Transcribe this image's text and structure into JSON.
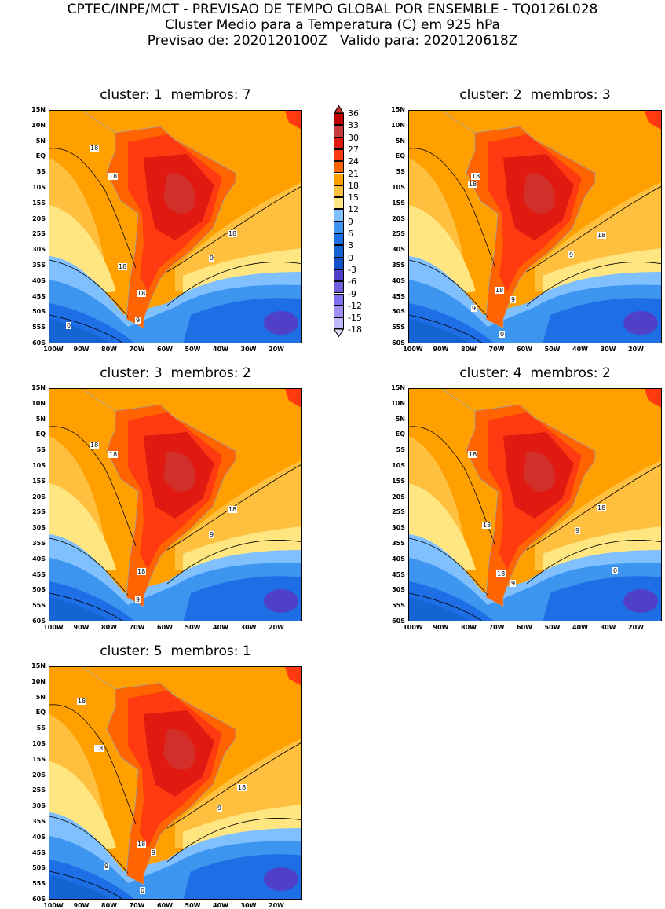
{
  "header": {
    "line1": "CPTEC/INPE/MCT - PREVISAO DE TEMPO GLOBAL POR ENSEMBLE - TQ0126L028",
    "line2": "Cluster Medio para a Temperatura (C) em 925 hPa",
    "line3": "Previsao de: 2020120100Z   Valido para: 2020120618Z"
  },
  "panels": [
    {
      "title": "cluster: 1  membros: 7",
      "contour_labels": [
        "18",
        "18",
        "18",
        "18",
        "9",
        "18",
        "9",
        "0"
      ]
    },
    {
      "title": "cluster: 2  membros: 3",
      "contour_labels": [
        "18",
        "18",
        "18",
        "9",
        "18",
        "9",
        "9",
        "0"
      ]
    },
    {
      "title": "cluster: 3  membros: 2",
      "contour_labels": [
        "18",
        "18",
        "18",
        "9",
        "18",
        "9"
      ]
    },
    {
      "title": "cluster: 4  membros: 2",
      "contour_labels": [
        "18",
        "18",
        "18",
        "9",
        "18",
        "9",
        "0"
      ]
    },
    {
      "title": "cluster: 5  membros: 1",
      "contour_labels": [
        "18",
        "18",
        "18",
        "9",
        "18",
        "9",
        "9",
        "0"
      ]
    }
  ],
  "lat_labels": [
    "15N",
    "10N",
    "5N",
    "EQ",
    "5S",
    "10S",
    "15S",
    "20S",
    "25S",
    "30S",
    "35S",
    "40S",
    "45S",
    "50S",
    "55S",
    "60S"
  ],
  "lon_labels": [
    "100W",
    "90W",
    "80W",
    "70W",
    "60W",
    "50W",
    "40W",
    "30W",
    "20W"
  ],
  "colorbar": {
    "labels": [
      "36",
      "33",
      "30",
      "27",
      "24",
      "21",
      "18",
      "15",
      "12",
      "9",
      "6",
      "3",
      "0",
      "-3",
      "-6",
      "-9",
      "-12",
      "-15",
      "-18"
    ],
    "top_color": "#c0302a",
    "bottom_color": "#dcdcff",
    "colors": [
      "#c00000",
      "#c83c3c",
      "#e01a10",
      "#ff3a10",
      "#ff6400",
      "#ffa000",
      "#ffc040",
      "#ffe680",
      "#80c0ff",
      "#3c96f0",
      "#1e6ee6",
      "#1464d2",
      "#1450c8",
      "#5040c8",
      "#7060dc",
      "#8070ee",
      "#a090fa",
      "#c0b8ff"
    ]
  }
}
